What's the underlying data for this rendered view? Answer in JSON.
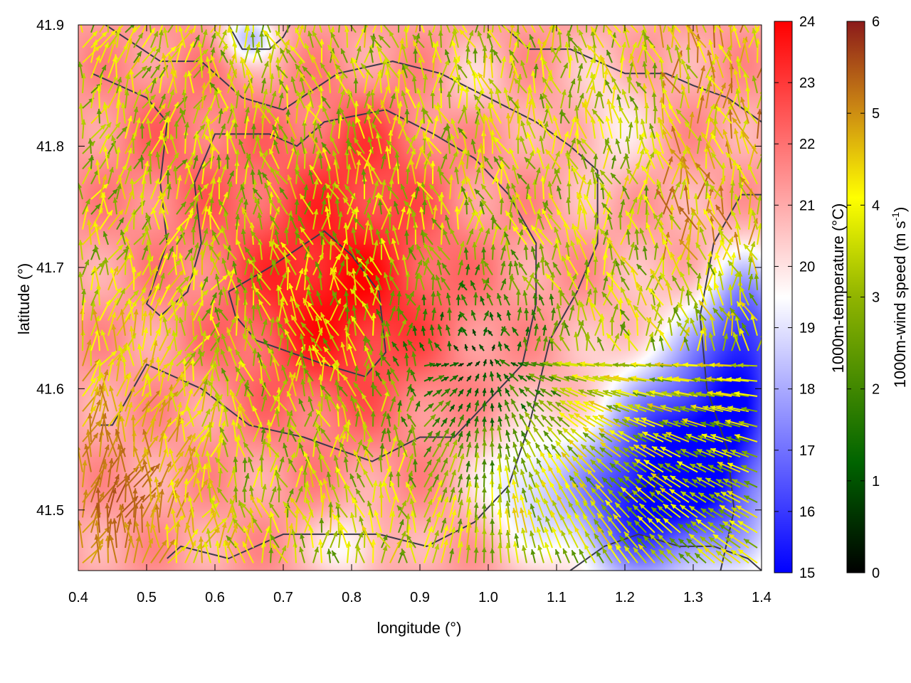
{
  "chart_data": {
    "type": "heatmap",
    "title": "",
    "xlabel": "longitude (°)",
    "ylabel": "latitude (°)",
    "xlim": [
      0.4,
      1.4
    ],
    "ylim": [
      41.45,
      41.9
    ],
    "xticks": [
      "0.4",
      "0.5",
      "0.6",
      "0.7",
      "0.8",
      "0.9",
      "1.0",
      "1.1",
      "1.2",
      "1.3",
      "1.4"
    ],
    "yticks": [
      "41.5",
      "41.6",
      "41.7",
      "41.8",
      "41.9"
    ],
    "temperature_colorbar": {
      "label": "1000m-temperature (°C)",
      "range": [
        15,
        24
      ],
      "ticks": [
        "15",
        "16",
        "17",
        "18",
        "19",
        "20",
        "21",
        "22",
        "23",
        "24"
      ],
      "colors": [
        "#0000ff",
        "#ffffff",
        "#ff0000"
      ]
    },
    "wind_colorbar": {
      "label_prefix": "1000m-wind speed (m s",
      "label_sup": "-1",
      "label_suffix": ")",
      "range": [
        0,
        6
      ],
      "ticks": [
        "0",
        "1",
        "2",
        "3",
        "4",
        "5",
        "6"
      ],
      "colors": [
        "#000000",
        "#006400",
        "#90b400",
        "#ffff00",
        "#c88214",
        "#8b1a1a"
      ]
    },
    "temperature_field": {
      "base": 21.2,
      "features": [
        {
          "lon": 0.78,
          "lat": 41.68,
          "amp": 2.6,
          "sx": 0.16,
          "sy": 0.1
        },
        {
          "lon": 0.55,
          "lat": 41.8,
          "amp": 0.8,
          "sx": 0.12,
          "sy": 0.08
        },
        {
          "lon": 0.82,
          "lat": 41.8,
          "amp": 1.0,
          "sx": 0.1,
          "sy": 0.05
        },
        {
          "lon": 1.32,
          "lat": 41.55,
          "amp": -6.5,
          "sx": 0.12,
          "sy": 0.09
        },
        {
          "lon": 1.2,
          "lat": 41.5,
          "amp": -3.8,
          "sx": 0.1,
          "sy": 0.07
        },
        {
          "lon": 1.38,
          "lat": 41.65,
          "amp": -4.0,
          "sx": 0.06,
          "sy": 0.06
        },
        {
          "lon": 1.05,
          "lat": 41.52,
          "amp": -2.2,
          "sx": 0.07,
          "sy": 0.05
        },
        {
          "lon": 0.65,
          "lat": 41.89,
          "amp": -2.8,
          "sx": 0.04,
          "sy": 0.02
        },
        {
          "lon": 0.98,
          "lat": 41.85,
          "amp": -0.8,
          "sx": 0.05,
          "sy": 0.03
        },
        {
          "lon": 1.18,
          "lat": 41.82,
          "amp": -1.2,
          "sx": 0.06,
          "sy": 0.06
        },
        {
          "lon": 0.8,
          "lat": 41.47,
          "amp": -1.8,
          "sx": 0.05,
          "sy": 0.03
        }
      ]
    },
    "wind_field": {
      "grid_step": 0.0125,
      "convergence_center": {
        "lon": 1.02,
        "lat": 41.6
      },
      "calm_zone": {
        "lon": 0.98,
        "lat": 41.62,
        "radius": 0.18
      },
      "strong_zone": {
        "lon": 0.45,
        "lat": 41.5,
        "radius": 0.2,
        "speed": 5.6
      },
      "mean_speed": 3.4
    },
    "contours": [
      [
        [
          0.42,
          41.86
        ],
        [
          0.5,
          41.84
        ],
        [
          0.53,
          41.82
        ],
        [
          0.52,
          41.77
        ],
        [
          0.53,
          41.72
        ],
        [
          0.5,
          41.67
        ],
        [
          0.52,
          41.66
        ],
        [
          0.56,
          41.68
        ],
        [
          0.58,
          41.72
        ],
        [
          0.57,
          41.77
        ],
        [
          0.6,
          41.81
        ],
        [
          0.68,
          41.81
        ],
        [
          0.72,
          41.8
        ],
        [
          0.76,
          41.82
        ],
        [
          0.85,
          41.83
        ],
        [
          0.92,
          41.81
        ],
        [
          0.98,
          41.79
        ],
        [
          1.03,
          41.76
        ],
        [
          1.07,
          41.72
        ],
        [
          1.07,
          41.67
        ],
        [
          1.05,
          41.62
        ],
        [
          1.0,
          41.59
        ],
        [
          0.95,
          41.56
        ],
        [
          0.9,
          41.56
        ],
        [
          0.83,
          41.54
        ],
        [
          0.78,
          41.55
        ],
        [
          0.73,
          41.56
        ],
        [
          0.65,
          41.57
        ],
        [
          0.58,
          41.6
        ],
        [
          0.5,
          41.62
        ],
        [
          0.45,
          41.57
        ],
        [
          0.43,
          41.57
        ]
      ],
      [
        [
          0.62,
          41.68
        ],
        [
          0.68,
          41.7
        ],
        [
          0.76,
          41.73
        ],
        [
          0.8,
          41.71
        ],
        [
          0.84,
          41.68
        ],
        [
          0.85,
          41.63
        ],
        [
          0.82,
          41.61
        ],
        [
          0.76,
          41.62
        ],
        [
          0.71,
          41.63
        ],
        [
          0.66,
          41.64
        ],
        [
          0.63,
          41.66
        ],
        [
          0.62,
          41.68
        ]
      ],
      [
        [
          0.44,
          41.9
        ],
        [
          0.52,
          41.87
        ],
        [
          0.58,
          41.87
        ],
        [
          0.64,
          41.84
        ],
        [
          0.7,
          41.83
        ],
        [
          0.78,
          41.86
        ],
        [
          0.86,
          41.87
        ],
        [
          0.93,
          41.86
        ],
        [
          1.0,
          41.84
        ],
        [
          1.07,
          41.82
        ],
        [
          1.12,
          41.8
        ],
        [
          1.16,
          41.78
        ],
        [
          1.16,
          41.72
        ],
        [
          1.13,
          41.68
        ],
        [
          1.09,
          41.64
        ],
        [
          1.06,
          41.57
        ],
        [
          1.03,
          41.52
        ],
        [
          0.98,
          41.49
        ],
        [
          0.91,
          41.47
        ],
        [
          0.84,
          41.48
        ],
        [
          0.77,
          41.48
        ],
        [
          0.7,
          41.48
        ],
        [
          0.62,
          41.46
        ],
        [
          0.55,
          41.47
        ],
        [
          0.53,
          41.46
        ]
      ],
      [
        [
          1.12,
          41.45
        ],
        [
          1.17,
          41.47
        ],
        [
          1.22,
          41.48
        ],
        [
          1.28,
          41.47
        ],
        [
          1.33,
          41.47
        ],
        [
          1.38,
          41.46
        ],
        [
          1.4,
          41.45
        ]
      ],
      [
        [
          0.62,
          41.9
        ],
        [
          0.64,
          41.88
        ],
        [
          0.68,
          41.88
        ],
        [
          0.7,
          41.89
        ],
        [
          0.71,
          41.9
        ]
      ],
      [
        [
          1.02,
          41.9
        ],
        [
          1.06,
          41.88
        ],
        [
          1.12,
          41.88
        ],
        [
          1.16,
          41.87
        ],
        [
          1.2,
          41.86
        ],
        [
          1.26,
          41.86
        ],
        [
          1.3,
          41.85
        ],
        [
          1.35,
          41.84
        ],
        [
          1.4,
          41.82
        ]
      ],
      [
        [
          1.34,
          41.45
        ],
        [
          1.36,
          41.5
        ],
        [
          1.35,
          41.55
        ],
        [
          1.32,
          41.6
        ],
        [
          1.31,
          41.66
        ],
        [
          1.33,
          41.72
        ],
        [
          1.37,
          41.76
        ],
        [
          1.4,
          41.76
        ]
      ],
      [
        [
          1.2,
          41.51
        ],
        [
          1.24,
          41.51
        ],
        [
          1.25,
          41.53
        ],
        [
          1.23,
          41.52
        ],
        [
          1.2,
          41.51
        ]
      ]
    ]
  }
}
